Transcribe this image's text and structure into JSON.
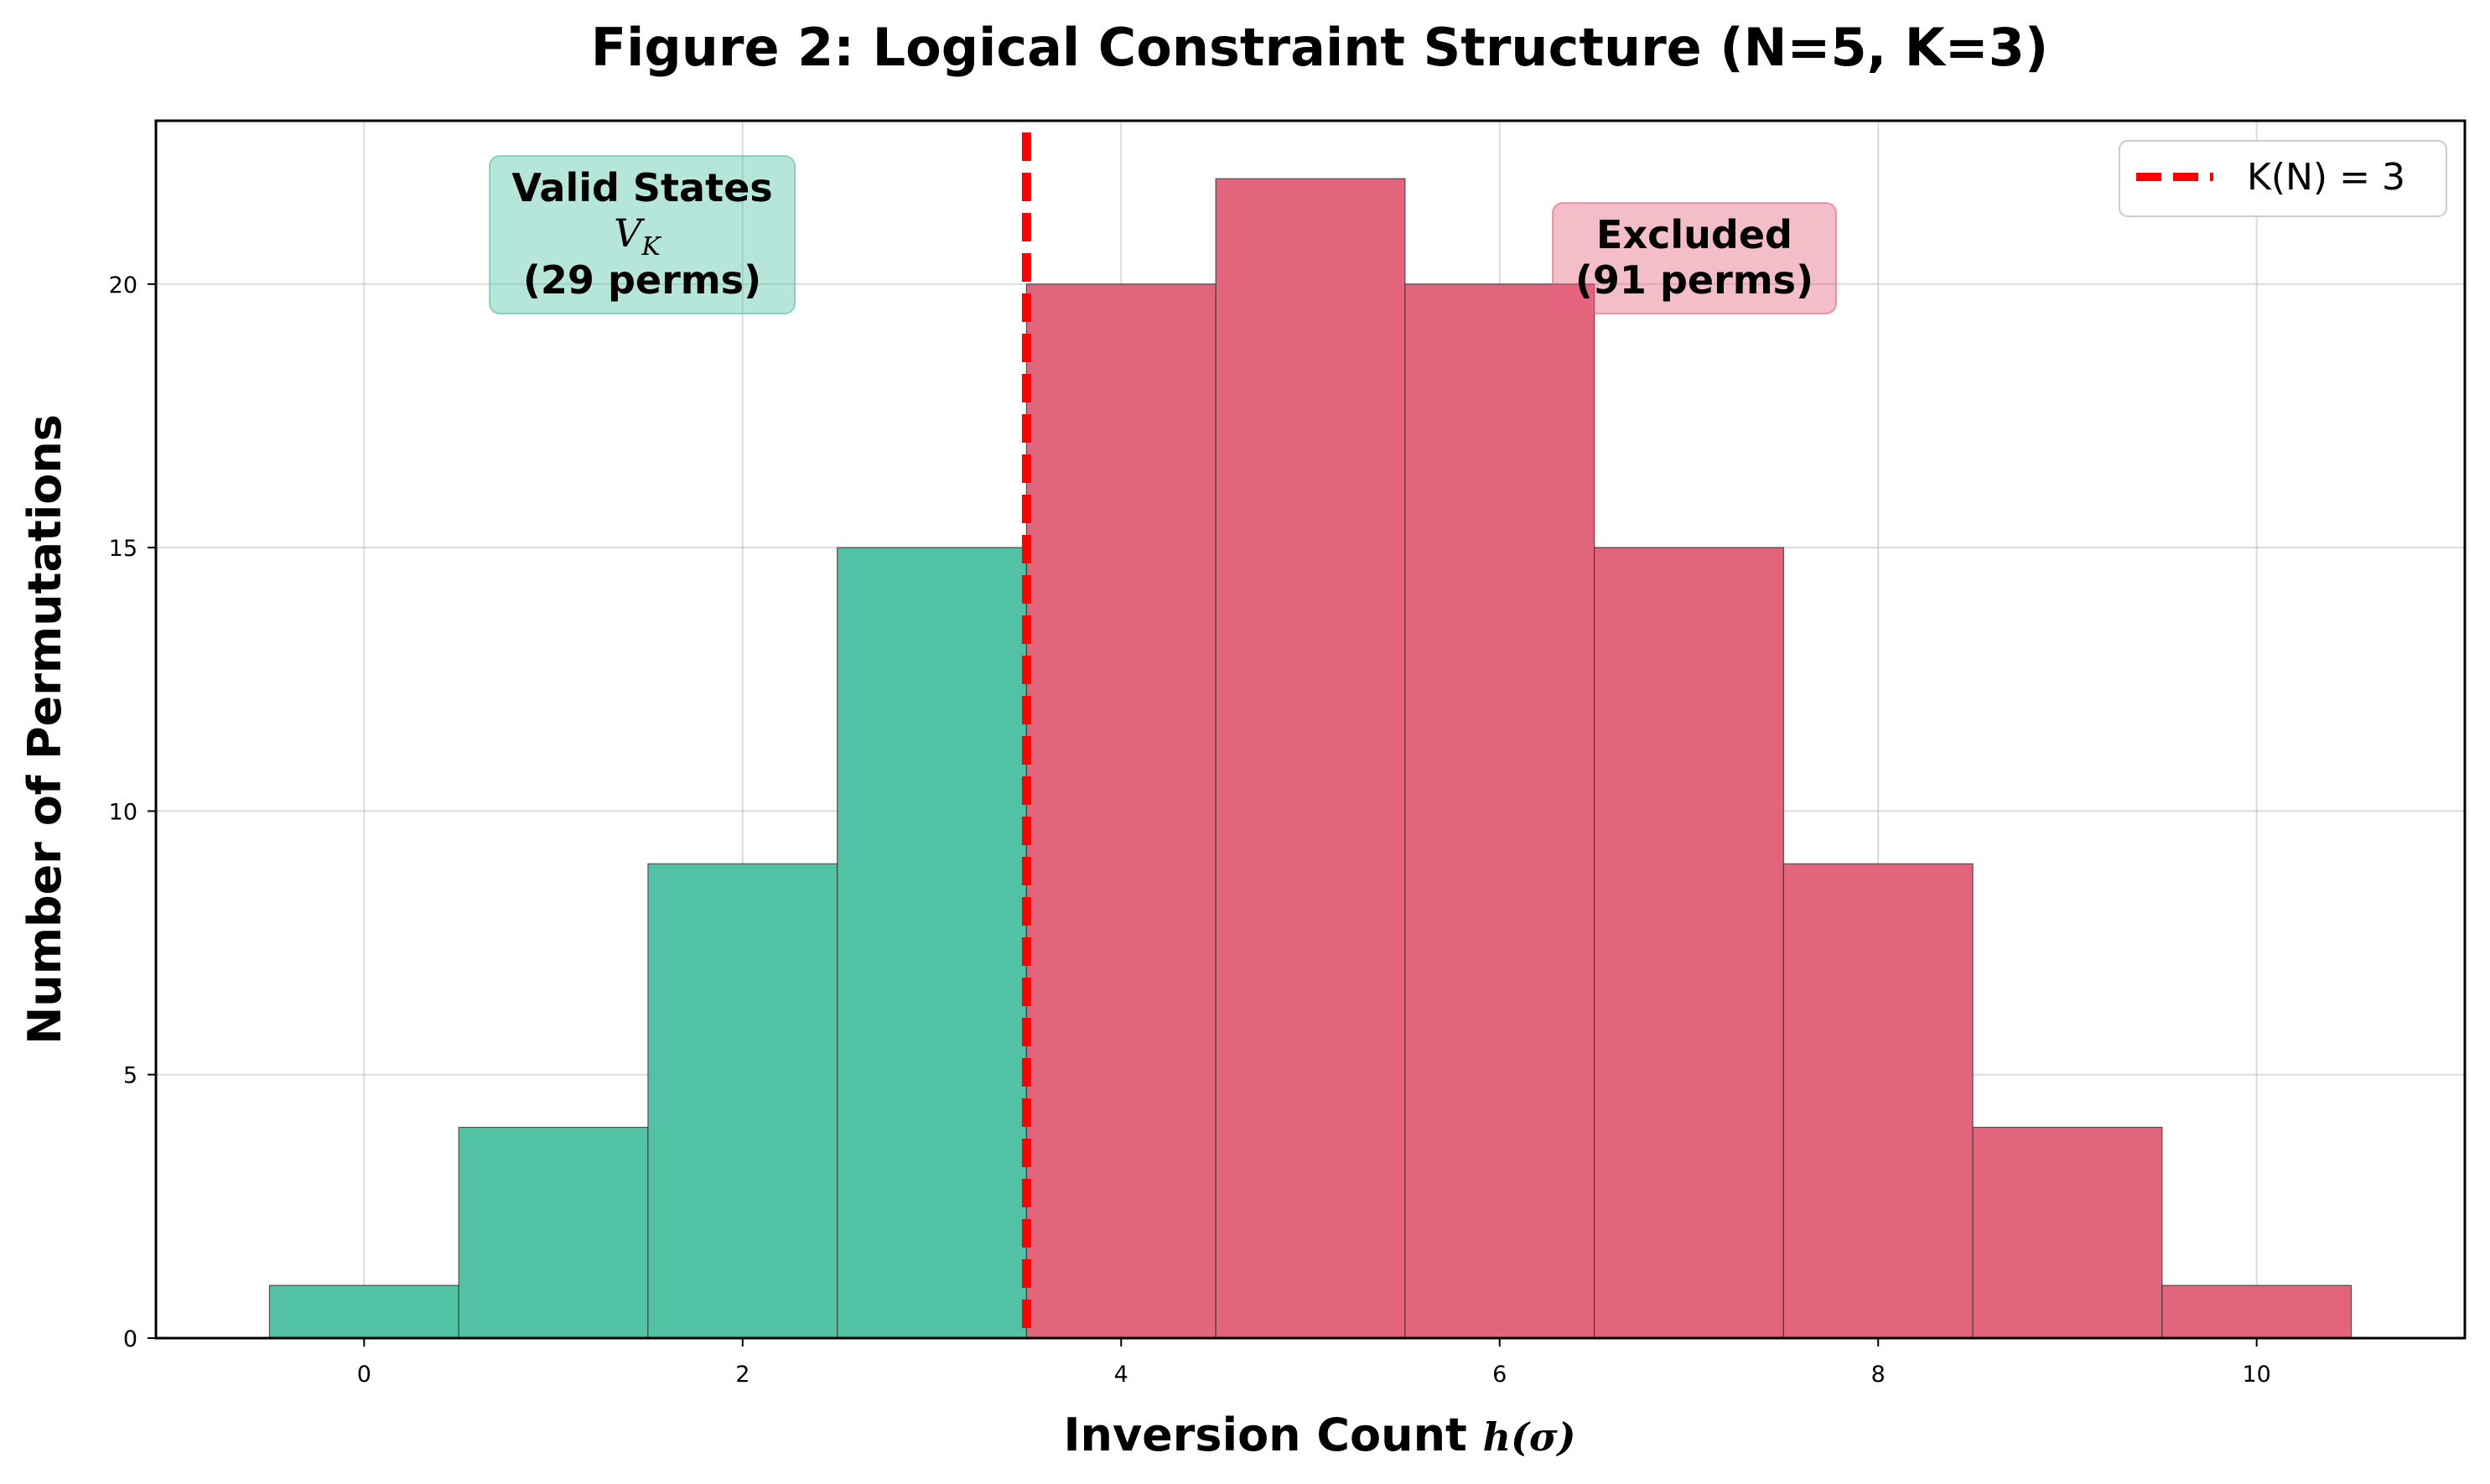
{
  "chart_data": {
    "type": "bar",
    "title": "Figure 2: Logical Constraint Structure (N=5, K=3)",
    "xlabel": "Inversion Count",
    "xlabel_math": "h(σ)",
    "ylabel": "Number of Permutations",
    "x": [
      0,
      1,
      2,
      3,
      4,
      5,
      6,
      7,
      8,
      9,
      10
    ],
    "values": [
      1,
      4,
      9,
      15,
      20,
      22,
      20,
      15,
      9,
      4,
      1
    ],
    "xlim": [
      -1.1,
      11.1
    ],
    "ylim": [
      0,
      23.1
    ],
    "xticks": [
      0,
      2,
      4,
      6,
      8,
      10
    ],
    "yticks": [
      0,
      5,
      10,
      15,
      20
    ],
    "grid": true,
    "threshold": {
      "x": 3.5,
      "label": "K(N) = 3",
      "color": "#ff0000"
    },
    "legend_position": "top-right",
    "colors": {
      "valid": "#52c2a5",
      "excluded": "#e3657c"
    },
    "annotations": [
      {
        "lines": [
          "Valid States",
          "V_K",
          "(29 perms)"
        ],
        "math_line": "V",
        "math_sub": "K"
      },
      {
        "lines": [
          "Excluded",
          "(91 perms)"
        ]
      }
    ]
  }
}
